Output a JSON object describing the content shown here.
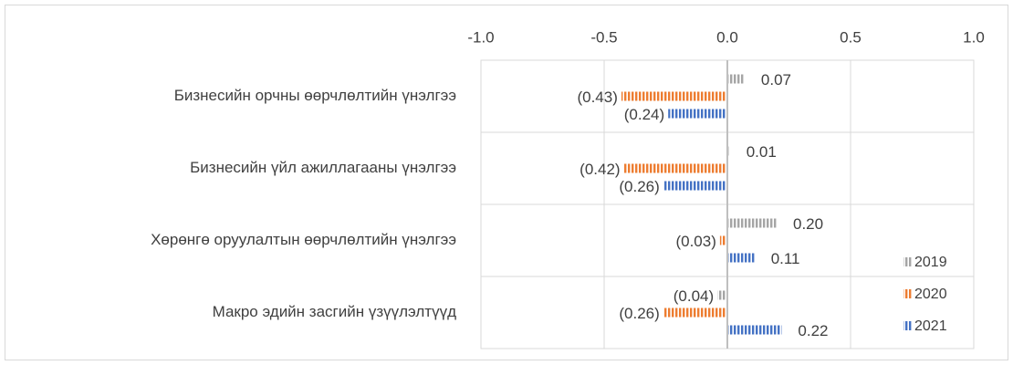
{
  "chart_data": {
    "type": "hbar",
    "categories": [
      "Бизнесийн орчны өөрчлөлтийн үнэлгээ",
      "Бизнесийн үйл ажиллагааны үнэлгээ",
      "Хөрөнгө оруулалтын өөрчлөлтийн үнэлгээ",
      "Макро эдийн засгийн үзүүлэлтүүд"
    ],
    "series": [
      {
        "name": "2019",
        "color": "#a5a5a5",
        "values": [
          0.07,
          0.01,
          0.2,
          -0.04
        ],
        "value_labels": [
          "0.07",
          "0.01",
          "0.20",
          "(0.04)"
        ]
      },
      {
        "name": "2020",
        "color": "#ed7d31",
        "values": [
          -0.43,
          -0.42,
          -0.03,
          -0.26
        ],
        "value_labels": [
          "(0.43)",
          "(0.42)",
          "(0.03)",
          "(0.26)"
        ]
      },
      {
        "name": "2021",
        "color": "#4472c4",
        "values": [
          -0.24,
          -0.26,
          0.11,
          0.22
        ],
        "value_labels": [
          "(0.24)",
          "(0.26)",
          "0.11",
          "0.22"
        ]
      }
    ],
    "xlim": [
      -1.0,
      1.0
    ],
    "xticks": [
      {
        "value": -1.0,
        "label": "-1.0"
      },
      {
        "value": -0.5,
        "label": "-0.5"
      },
      {
        "value": 0,
        "label": "0.0"
      },
      {
        "value": 0.5,
        "label": "0.5"
      },
      {
        "value": 1.0,
        "label": "1.0"
      }
    ],
    "grid": true,
    "legend": "lower right"
  }
}
